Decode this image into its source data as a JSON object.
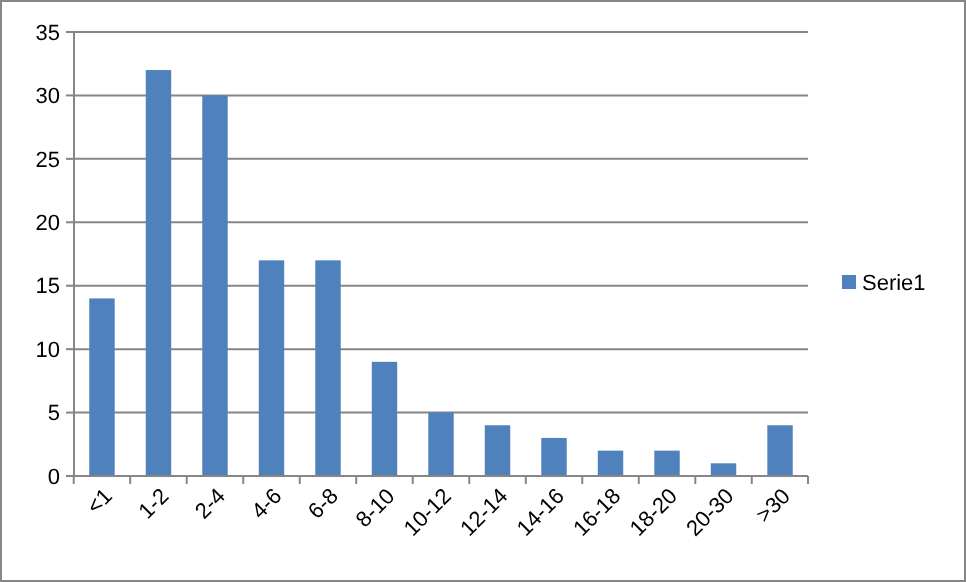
{
  "chart_data": {
    "type": "bar",
    "categories": [
      "<1",
      "1-2",
      "2-4",
      "4-6",
      "6-8",
      "8-10",
      "10-12",
      "12-14",
      "14-16",
      "16-18",
      "18-20",
      "20-30",
      ">30"
    ],
    "series": [
      {
        "name": "Serie1",
        "color": "#4f81bd",
        "values": [
          14,
          32,
          30,
          17,
          17,
          9,
          5,
          4,
          3,
          2,
          2,
          1,
          4
        ]
      }
    ],
    "ylim": [
      0,
      35
    ],
    "yticks": [
      0,
      5,
      10,
      15,
      20,
      25,
      30,
      35
    ],
    "grid": "y",
    "legend": "right"
  }
}
